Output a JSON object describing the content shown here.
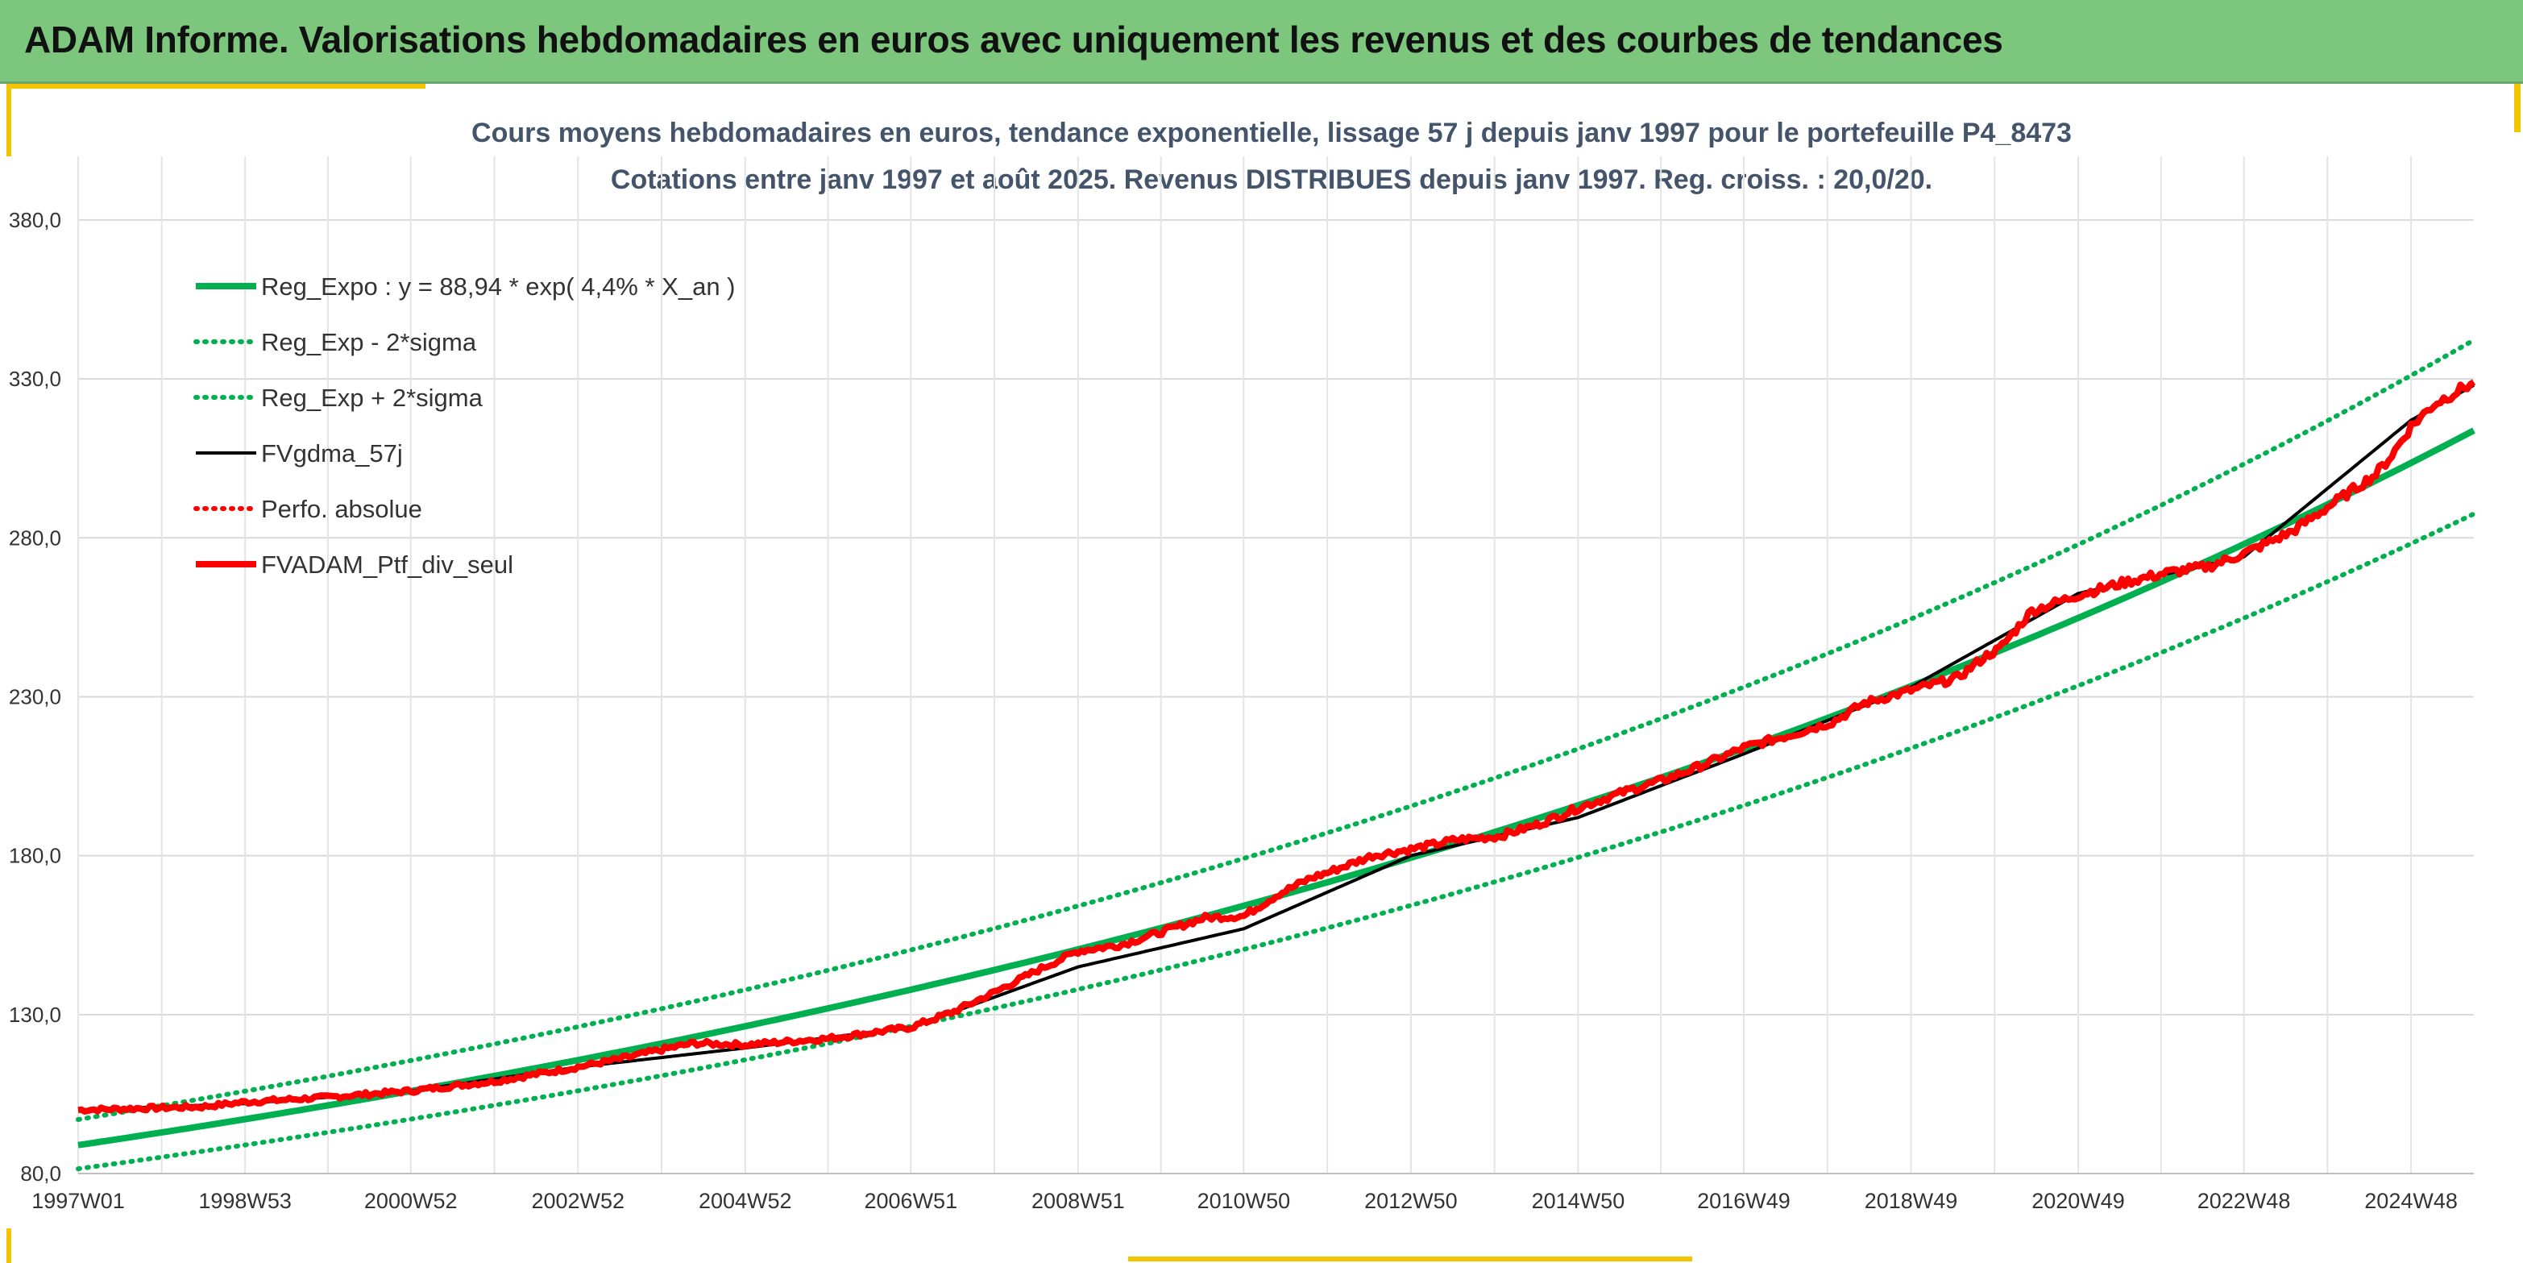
{
  "header": {
    "title": "ADAM Informe. Valorisations hebdomadaires en euros avec uniquement les revenus et des courbes de tendances"
  },
  "colors": {
    "banner": "#7dc67d",
    "accent": "#f5c400",
    "trend_green": "#00b050",
    "price_red": "#ff0000",
    "mm_black": "#000000",
    "grid": "#d9d9d9"
  },
  "chart_data": {
    "type": "line",
    "title_lines": [
      "Cours moyens hebdomadaires en euros, tendance exponentielle, lissage 57 j depuis janv 1997 pour le portefeuille P4_8473",
      "Cotations entre janv 1997 et août 2025. Revenus DISTRIBUES depuis janv 1997. Reg. croiss. : 20,0/20."
    ],
    "x_start": "1997W01",
    "x_end": "2025W35",
    "x_tick_labels": [
      "1997W01",
      "1998W53",
      "2000W52",
      "2002W52",
      "2004W52",
      "2006W51",
      "2008W51",
      "2010W50",
      "2012W50",
      "2014W50",
      "2016W49",
      "2018W49",
      "2020W49",
      "2022W48",
      "2024W48"
    ],
    "ylim": [
      80,
      400
    ],
    "y_tick_values": [
      80,
      130,
      180,
      230,
      280,
      330,
      380
    ],
    "y_tick_labels": [
      "80,0",
      "130,0",
      "180,0",
      "230,0",
      "280,0",
      "330,0",
      "380,0"
    ],
    "grid": true,
    "legend_position": "top-left",
    "series": [
      {
        "name": "Reg_Expo : y = 88,94 * exp( 4,4% *  X_an )",
        "style": "solid",
        "color": "#00b050",
        "formula": {
          "a": 88.94,
          "rate": 0.044
        }
      },
      {
        "name": "Reg_Exp - 2*sigma",
        "style": "dotted",
        "color": "#00b050",
        "formula": {
          "a": 81.5,
          "rate": 0.044
        }
      },
      {
        "name": "Reg_Exp + 2*sigma",
        "style": "dotted",
        "color": "#00b050",
        "formula": {
          "a": 97.0,
          "rate": 0.044
        }
      },
      {
        "name": "FVgdma_57j",
        "style": "solid",
        "color": "#000000",
        "x": [
          "1997W01",
          "1998W53",
          "2000W52",
          "2002W52",
          "2004W52",
          "2006W51",
          "2008W51",
          "2010W50",
          "2012W50",
          "2014W50",
          "2016W49",
          "2018W49",
          "2020W49",
          "2022W48",
          "2024W48",
          "2025W35"
        ],
        "y": [
          100.0,
          102.0,
          106.0,
          113.5,
          119.5,
          126.0,
          145.0,
          157.0,
          180.0,
          192.0,
          212.0,
          233.0,
          262.5,
          274.0,
          317.0,
          328.0
        ]
      },
      {
        "name": "Perfo. absolue",
        "style": "dotted",
        "color": "#ff0000"
      },
      {
        "name": "FVADAM_Ptf_div_seul",
        "style": "solid",
        "color": "#ff0000",
        "x": [
          "1997W01",
          "1998W26",
          "1998W53",
          "1999W52",
          "2000W52",
          "2001W52",
          "2002W52",
          "2003W30",
          "2003W52",
          "2004W20",
          "2004W52",
          "2005W52",
          "2006W51",
          "2007W26",
          "2007W51",
          "2008W26",
          "2008W51",
          "2009W26",
          "2009W51",
          "2010W26",
          "2010W50",
          "2011W20",
          "2011W40",
          "2011W52",
          "2012W26",
          "2012W50",
          "2013W26",
          "2013W52",
          "2014W26",
          "2014W50",
          "2015W26",
          "2015W52",
          "2016W26",
          "2016W49",
          "2017W26",
          "2017W52",
          "2018W20",
          "2018W49",
          "2019W26",
          "2019W44",
          "2019W52",
          "2020W20",
          "2020W49",
          "2021W26",
          "2021W52",
          "2022W26",
          "2022W48",
          "2023W26",
          "2023W52",
          "2024W26",
          "2024W36",
          "2024W48",
          "2025W10",
          "2025W35"
        ],
        "y": [
          100.0,
          101.0,
          102.5,
          104.0,
          106.0,
          109.0,
          113.5,
          116.5,
          119.0,
          121.0,
          120.5,
          122.5,
          126.0,
          131.0,
          137.0,
          144.0,
          150.0,
          152.0,
          156.0,
          160.5,
          161.0,
          168.0,
          173.0,
          175.0,
          180.0,
          182.0,
          185.0,
          186.0,
          190.0,
          195.0,
          200.0,
          204.0,
          209.0,
          214.0,
          218.0,
          222.0,
          228.0,
          232.0,
          236.0,
          243.0,
          245.0,
          257.0,
          262.0,
          266.0,
          269.0,
          271.0,
          275.0,
          282.0,
          291.0,
          300.0,
          306.0,
          315.0,
          322.0,
          329.0
        ]
      }
    ]
  }
}
